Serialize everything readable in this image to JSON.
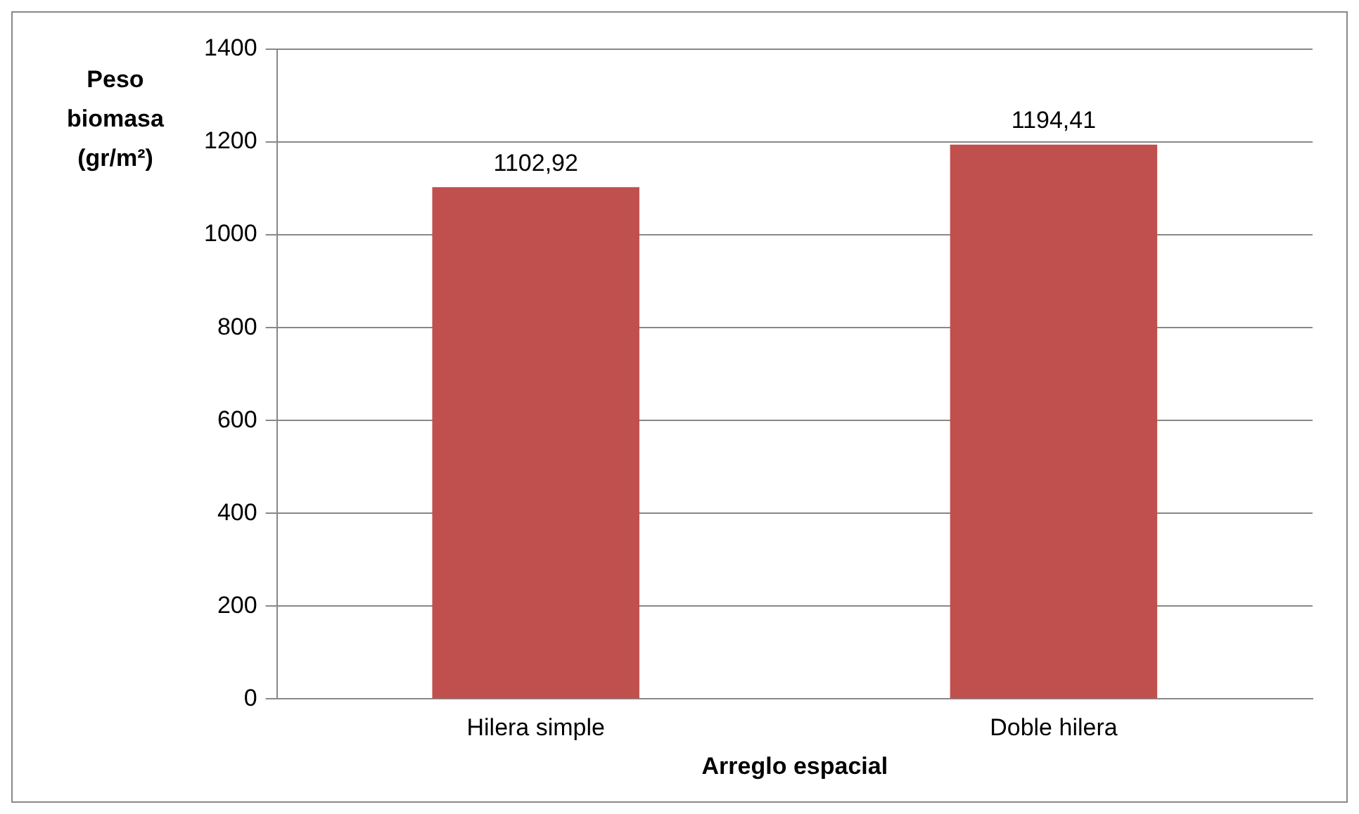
{
  "chart_data": {
    "type": "bar",
    "xlabel": "Arreglo espacial",
    "ylabel": "Peso biomasa (gr/m²)",
    "categories": [
      "Hilera simple",
      "Doble hilera"
    ],
    "values": [
      1102.92,
      1194.41
    ],
    "value_labels": [
      "1102,92",
      "1194,41"
    ],
    "color": "#c0504d",
    "ylim": [
      0,
      1400
    ],
    "yticks": [
      0,
      200,
      400,
      600,
      800,
      1000,
      1200,
      1400
    ],
    "grid": "y",
    "legend": false
  }
}
